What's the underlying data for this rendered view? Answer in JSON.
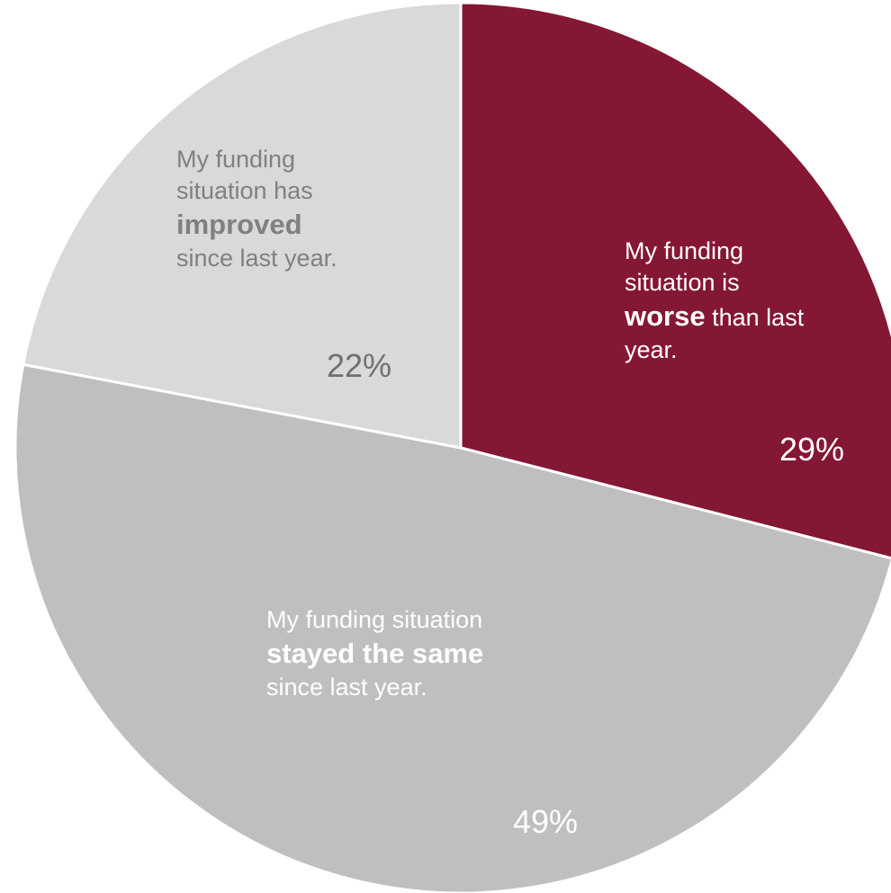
{
  "chart_data": {
    "type": "pie",
    "slices": [
      {
        "key": "worse",
        "value": 29,
        "value_label": "29%",
        "color": "#841734",
        "text_before": "My funding situation is",
        "text_bold": "worse",
        "text_after": "than last year."
      },
      {
        "key": "same",
        "value": 49,
        "value_label": "49%",
        "color": "#bfbfbf",
        "text_before": "My funding situation",
        "text_bold": "stayed the same",
        "text_after": "since last year."
      },
      {
        "key": "improved",
        "value": 22,
        "value_label": "22%",
        "color": "#d9d9d9",
        "text_before": "My funding situation has",
        "text_bold": "improved",
        "text_after": "since last year."
      }
    ],
    "start_angle_deg": 0,
    "direction": "clockwise"
  }
}
